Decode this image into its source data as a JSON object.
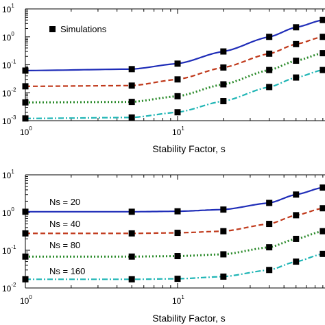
{
  "chart_data": [
    {
      "type": "line",
      "xscale": "log",
      "yscale": "log",
      "xlim": [
        1,
        100
      ],
      "ylim": [
        0.001,
        10
      ],
      "xlabel": "Stability Factor, s",
      "ylabel": "",
      "x_ticks": [
        {
          "base": "10",
          "exp": "0"
        },
        {
          "base": "10",
          "exp": "1"
        }
      ],
      "y_ticks": [
        {
          "base": "10",
          "exp": "-3"
        },
        {
          "base": "10",
          "exp": "-2"
        },
        {
          "base": "10",
          "exp": "-1"
        },
        {
          "base": "10",
          "exp": "0"
        },
        {
          "base": "10",
          "exp": "1"
        }
      ],
      "legend": {
        "label": "Simulations",
        "position": "top-left",
        "marker": "square"
      },
      "marker_x": [
        1,
        5,
        10,
        20,
        40,
        60,
        90
      ],
      "series": [
        {
          "color": "#1f2db8",
          "dash": "solid",
          "x": [
            1,
            5,
            10,
            20,
            40,
            60,
            90,
            100
          ],
          "y": [
            0.062,
            0.07,
            0.11,
            0.3,
            1.0,
            2.2,
            4.0,
            4.6
          ]
        },
        {
          "color": "#c0391b",
          "dash": "dashed",
          "x": [
            1,
            5,
            10,
            20,
            40,
            60,
            90,
            100
          ],
          "y": [
            0.017,
            0.018,
            0.03,
            0.08,
            0.25,
            0.55,
            1.0,
            1.15
          ]
        },
        {
          "color": "#2a8a2a",
          "dash": "dotted",
          "x": [
            1,
            5,
            10,
            20,
            40,
            60,
            90,
            100
          ],
          "y": [
            0.0045,
            0.0047,
            0.0075,
            0.02,
            0.065,
            0.14,
            0.26,
            0.3
          ]
        },
        {
          "color": "#1fb5b5",
          "dash": "dashdot",
          "x": [
            1,
            5,
            10,
            20,
            40,
            60,
            90,
            100
          ],
          "y": [
            0.0012,
            0.0013,
            0.002,
            0.005,
            0.016,
            0.035,
            0.065,
            0.075
          ]
        }
      ]
    },
    {
      "type": "line",
      "xscale": "log",
      "yscale": "log",
      "xlim": [
        1,
        100
      ],
      "ylim": [
        0.01,
        10
      ],
      "xlabel": "Stability Factor, s",
      "ylabel": "",
      "x_ticks": [
        {
          "base": "10",
          "exp": "0"
        },
        {
          "base": "10",
          "exp": "1"
        }
      ],
      "y_ticks": [
        {
          "base": "10",
          "exp": "-2"
        },
        {
          "base": "10",
          "exp": "-1"
        },
        {
          "base": "10",
          "exp": "0"
        },
        {
          "base": "10",
          "exp": "1"
        }
      ],
      "marker_x": [
        1,
        5,
        10,
        20,
        40,
        60,
        90
      ],
      "series": [
        {
          "name": "Ns = 20",
          "color": "#1f2db8",
          "dash": "solid",
          "x": [
            1,
            5,
            10,
            20,
            40,
            60,
            90,
            100
          ],
          "y": [
            1.05,
            1.05,
            1.08,
            1.2,
            1.8,
            3.0,
            4.6,
            5.0
          ]
        },
        {
          "name": "Ns = 40",
          "color": "#c0391b",
          "dash": "dashed",
          "x": [
            1,
            5,
            10,
            20,
            40,
            60,
            90,
            100
          ],
          "y": [
            0.28,
            0.28,
            0.29,
            0.32,
            0.5,
            0.85,
            1.3,
            1.45
          ]
        },
        {
          "name": "Ns = 80",
          "color": "#2a8a2a",
          "dash": "dotted",
          "x": [
            1,
            5,
            10,
            20,
            40,
            60,
            90,
            100
          ],
          "y": [
            0.068,
            0.068,
            0.07,
            0.078,
            0.12,
            0.2,
            0.32,
            0.36
          ]
        },
        {
          "name": "Ns = 160",
          "color": "#1fb5b5",
          "dash": "dashdot",
          "x": [
            1,
            5,
            10,
            20,
            40,
            60,
            90,
            100
          ],
          "y": [
            0.017,
            0.017,
            0.0175,
            0.02,
            0.03,
            0.05,
            0.08,
            0.09
          ]
        }
      ]
    }
  ]
}
